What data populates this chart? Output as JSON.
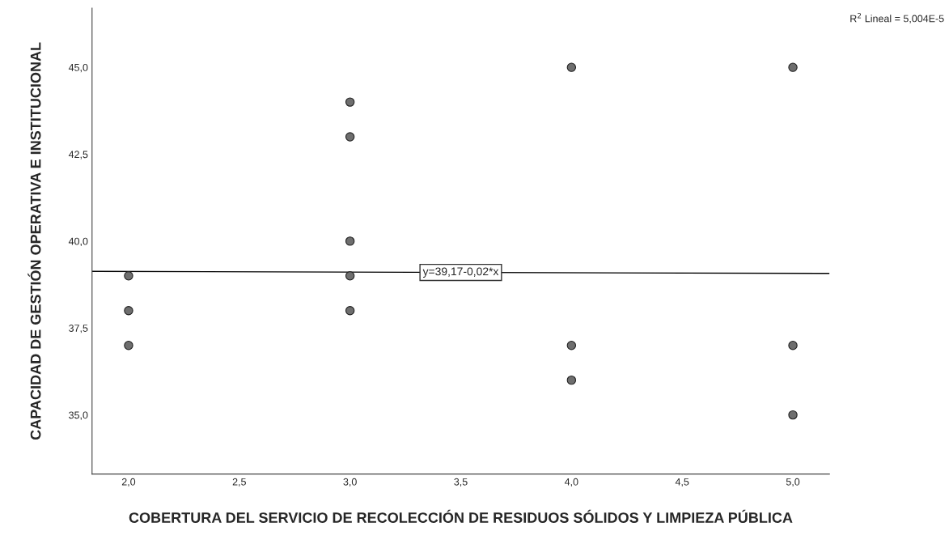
{
  "chart_data": {
    "type": "scatter",
    "xlabel": "COBERTURA DEL SERVICIO DE RECOLECCIÓN DE RESIDUOS SÓLIDOS Y LIMPIEZA PÚBLICA",
    "ylabel": "CAPACIDAD DE GESTIÓN OPERATIVA E INSTITUCIONAL",
    "series": [
      {
        "color": "#6e6e6e",
        "marker": "circle",
        "x": [
          2,
          2,
          2,
          3,
          3,
          3,
          3,
          3,
          4,
          4,
          4,
          5,
          5,
          5
        ],
        "values": [
          39,
          38,
          37,
          44,
          43,
          40,
          39,
          38,
          45,
          37,
          36,
          45,
          37,
          35
        ]
      },
      {
        "type": "line",
        "color": "#000000",
        "marker": "none",
        "line_style": "solid",
        "x": [
          1.835,
          5.165
        ],
        "values": [
          39.13,
          39.07
        ]
      }
    ],
    "xlim": [
      1.835,
      5.165
    ],
    "ylim": [
      33.3,
      46.7
    ],
    "xticks": [
      {
        "value": 2.0,
        "label": "2,0"
      },
      {
        "value": 2.5,
        "label": "2,5"
      },
      {
        "value": 3.0,
        "label": "3,0"
      },
      {
        "value": 3.5,
        "label": "3,5"
      },
      {
        "value": 4.0,
        "label": "4,0"
      },
      {
        "value": 4.5,
        "label": "4,5"
      },
      {
        "value": 5.0,
        "label": "5,0"
      }
    ],
    "yticks": [
      {
        "value": 35.0,
        "label": "35,0"
      },
      {
        "value": 37.5,
        "label": "37,5"
      },
      {
        "value": 40.0,
        "label": "40,0"
      },
      {
        "value": 42.5,
        "label": "42,5"
      },
      {
        "value": 45.0,
        "label": "45,0"
      }
    ],
    "grid": false,
    "legend": false,
    "annotations": [
      {
        "text": "y=39,17-0,02*x",
        "x": 3.5,
        "y": 39.1
      },
      "R$^{2}$ Lineal = 5,004E-5"
    ]
  }
}
